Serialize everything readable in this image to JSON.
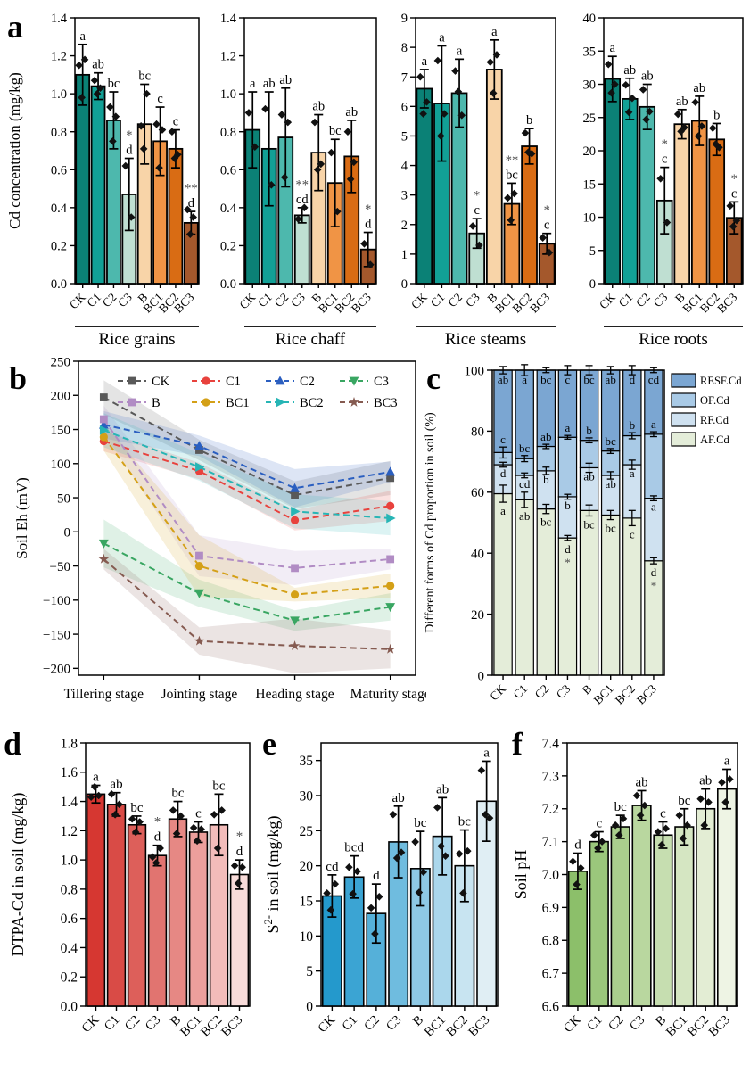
{
  "figure": {
    "background": "#ffffff",
    "panel_letters": {
      "a": "a",
      "b": "b",
      "c": "c",
      "d": "d",
      "e": "e",
      "f": "f"
    }
  },
  "chart_data": [
    {
      "id": "panel-a",
      "panel_letter": "a",
      "type": "bar",
      "ylabel": "Cd concentration (mg/kg)",
      "categories": [
        "CK",
        "C1",
        "C2",
        "C3",
        "B",
        "BC1",
        "BC2",
        "BC3"
      ],
      "bar_colors": [
        "#0b8176",
        "#12a096",
        "#4db8ad",
        "#bfdfd2",
        "#f8d4a8",
        "#f09445",
        "#d96c14",
        "#a4582c"
      ],
      "subplots": [
        {
          "group_label": "Rice grains",
          "ylim": [
            0,
            1.4
          ],
          "yticks": [
            0,
            0.2,
            0.4,
            0.6,
            0.8,
            1.0,
            1.2,
            1.4
          ],
          "decimals": 1,
          "values": [
            1.1,
            1.04,
            0.86,
            0.47,
            0.84,
            0.75,
            0.71,
            0.32
          ],
          "errors": [
            0.16,
            0.07,
            0.15,
            0.19,
            0.21,
            0.18,
            0.1,
            0.06
          ],
          "sig_labels": [
            "a",
            "ab",
            "bc",
            "d",
            "bc",
            "c",
            "c",
            "d"
          ],
          "stars": [
            "",
            "",
            "",
            "*",
            "",
            "",
            "",
            "**"
          ],
          "points": [
            [
              1.15,
              1.18,
              0.98
            ],
            [
              1.07,
              1.03,
              1.0
            ],
            [
              0.93,
              0.88,
              0.75
            ],
            [
              0.62,
              0.35
            ],
            [
              0.83,
              1.0,
              0.71
            ],
            [
              0.84,
              0.81,
              0.61
            ],
            [
              0.8,
              0.68,
              0.66
            ],
            [
              0.39,
              0.35,
              0.26
            ]
          ]
        },
        {
          "group_label": "Rice chaff",
          "ylim": [
            0,
            1.4
          ],
          "yticks": [
            0,
            0.2,
            0.4,
            0.6,
            0.8,
            1.0,
            1.2,
            1.4
          ],
          "decimals": 1,
          "values": [
            0.81,
            0.71,
            0.77,
            0.36,
            0.69,
            0.53,
            0.67,
            0.18
          ],
          "errors": [
            0.2,
            0.3,
            0.26,
            0.04,
            0.2,
            0.23,
            0.19,
            0.09
          ],
          "sig_labels": [
            "a",
            "ab",
            "ab",
            "cd",
            "ab",
            "bc",
            "ab",
            "d"
          ],
          "stars": [
            "",
            "",
            "",
            "**",
            "",
            "",
            "",
            "*"
          ],
          "points": [
            [
              0.9,
              0.72
            ],
            [
              0.92,
              0.52
            ],
            [
              0.89,
              0.85,
              0.56
            ],
            [
              0.34,
              0.4
            ],
            [
              0.85,
              0.63,
              0.6
            ],
            [
              0.69,
              0.38
            ],
            [
              0.8,
              0.64,
              0.55
            ],
            [
              0.21,
              0.1
            ]
          ]
        },
        {
          "group_label": "Rice steams",
          "ylim": [
            0,
            9
          ],
          "yticks": [
            0,
            1,
            2,
            3,
            4,
            5,
            6,
            7,
            8,
            9
          ],
          "decimals": 0,
          "values": [
            6.6,
            6.1,
            6.45,
            1.7,
            7.25,
            2.7,
            4.65,
            1.35
          ],
          "errors": [
            0.65,
            1.95,
            1.15,
            0.5,
            1.0,
            0.7,
            0.6,
            0.35
          ],
          "sig_labels": [
            "a",
            "a",
            "a",
            "c",
            "a",
            "bc",
            "b",
            "c"
          ],
          "stars": [
            "",
            "",
            "",
            "*",
            "",
            "**",
            "",
            "*"
          ],
          "points": [
            [
              7.0,
              6.15,
              5.75
            ],
            [
              7.55,
              5.75,
              5.0
            ],
            [
              7.2,
              5.7,
              6.5
            ],
            [
              1.95,
              1.3
            ],
            [
              7.5,
              7.75,
              6.45
            ],
            [
              2.9,
              3.05,
              2.15
            ],
            [
              5.1,
              4.4,
              4.45
            ],
            [
              1.55,
              1.05
            ]
          ]
        },
        {
          "group_label": "Rice roots",
          "ylim": [
            0,
            40
          ],
          "yticks": [
            0,
            5,
            10,
            15,
            20,
            25,
            30,
            35,
            40
          ],
          "decimals": 0,
          "values": [
            30.8,
            27.8,
            26.6,
            12.5,
            24.0,
            24.5,
            21.7,
            9.9
          ],
          "errors": [
            3.4,
            3.1,
            3.4,
            5.0,
            2.2,
            3.7,
            2.4,
            2.4
          ],
          "sig_labels": [
            "a",
            "ab",
            "ab",
            "c",
            "ab",
            "ab",
            "b",
            "c"
          ],
          "stars": [
            "",
            "",
            "",
            "*",
            "",
            "",
            "",
            "*"
          ],
          "points": [
            [
              33.0,
              30.0,
              28.7
            ],
            [
              29.9,
              27.9,
              25.8
            ],
            [
              29.2,
              25.9,
              24.7
            ],
            [
              15.8,
              9.2
            ],
            [
              25.5,
              23.5,
              22.9
            ],
            [
              27.3,
              23.7,
              22.2
            ],
            [
              23.4,
              20.5,
              21.0
            ],
            [
              11.7,
              9.5,
              8.6
            ]
          ]
        }
      ]
    },
    {
      "id": "panel-b",
      "panel_letter": "b",
      "type": "line",
      "ylabel": "Soil Eh (mV)",
      "ylim": [
        -210,
        250
      ],
      "yticks": [
        -200,
        -150,
        -100,
        -50,
        0,
        50,
        100,
        150,
        200,
        250
      ],
      "x_categories": [
        "Tillering stage",
        "Jointing stage",
        "Heading stage",
        "Maturity stage"
      ],
      "series": [
        {
          "name": "CK",
          "color": "#595959",
          "marker": "square",
          "values": [
            197,
            120,
            54,
            79
          ],
          "band": [
            25,
            15,
            20,
            25
          ]
        },
        {
          "name": "C1",
          "color": "#e8423d",
          "marker": "circle",
          "values": [
            133,
            89,
            17,
            38
          ],
          "band": [
            15,
            12,
            15,
            22
          ]
        },
        {
          "name": "C2",
          "color": "#2b5fc0",
          "marker": "triangle-up",
          "values": [
            157,
            126,
            64,
            88
          ],
          "band": [
            20,
            15,
            28,
            15
          ]
        },
        {
          "name": "C3",
          "color": "#39a662",
          "marker": "triangle-down",
          "values": [
            -17,
            -90,
            -130,
            -110
          ],
          "band": [
            35,
            20,
            15,
            20
          ]
        },
        {
          "name": "B",
          "color": "#b18cc4",
          "marker": "square",
          "values": [
            165,
            -35,
            -53,
            -40
          ],
          "band": [
            20,
            30,
            25,
            15
          ]
        },
        {
          "name": "BC1",
          "color": "#d4a017",
          "marker": "circle",
          "values": [
            139,
            -50,
            -92,
            -79
          ],
          "band": [
            20,
            45,
            10,
            18
          ]
        },
        {
          "name": "BC2",
          "color": "#27b5b5",
          "marker": "triangle-right",
          "values": [
            149,
            95,
            30,
            20
          ],
          "band": [
            25,
            20,
            25,
            25
          ]
        },
        {
          "name": "BC3",
          "color": "#855a50",
          "marker": "star",
          "values": [
            -40,
            -160,
            -167,
            -172
          ],
          "band": [
            15,
            20,
            40,
            28
          ]
        }
      ]
    },
    {
      "id": "panel-c",
      "panel_letter": "c",
      "type": "stacked-bar",
      "ylabel": "Different forms of Cd proportion in soil (%)",
      "ylim": [
        0,
        100
      ],
      "yticks": [
        0,
        20,
        40,
        60,
        80,
        100
      ],
      "categories": [
        "CK",
        "C1",
        "C2",
        "C3",
        "B",
        "BC1",
        "BC2",
        "BC3"
      ],
      "segments_bottom_to_top": [
        "AF.Cd",
        "RF.Cd",
        "OF.Cd",
        "RESF.Cd"
      ],
      "segment_colors": {
        "AF.Cd": "#e4edd9",
        "RF.Cd": "#cfe1f0",
        "OF.Cd": "#a9cae6",
        "RESF.Cd": "#7ba6d2"
      },
      "legend": [
        "RESF.Cd",
        "OF.Cd",
        "RF.Cd",
        "AF.Cd"
      ],
      "bars": [
        {
          "category": "CK",
          "values": [
            59.5,
            9.5,
            4.0,
            27.0
          ],
          "labels": [
            "a",
            "d",
            "c",
            "ab"
          ],
          "errs": [
            2.8,
            0.8,
            1.8,
            1.2
          ],
          "star": ""
        },
        {
          "category": "C1",
          "values": [
            57.5,
            8.0,
            5.5,
            29.0
          ],
          "labels": [
            "ab",
            "cd",
            "bc",
            "a"
          ],
          "errs": [
            2.5,
            0.8,
            1.0,
            1.8
          ],
          "star": ""
        },
        {
          "category": "C2",
          "values": [
            54.5,
            12.5,
            8.0,
            25.0
          ],
          "labels": [
            "bc",
            "b",
            "ab",
            "bc"
          ],
          "errs": [
            1.5,
            1.2,
            0.7,
            0.8
          ],
          "star": ""
        },
        {
          "category": "C3",
          "values": [
            45.0,
            13.5,
            19.5,
            22.0
          ],
          "labels": [
            "d",
            "b",
            "a",
            "c"
          ],
          "errs": [
            0.8,
            0.8,
            0.6,
            1.5
          ],
          "star": "*"
        },
        {
          "category": "B",
          "values": [
            54.0,
            14.0,
            9.0,
            23.0
          ],
          "labels": [
            "bc",
            "ab",
            "b",
            "bc"
          ],
          "errs": [
            1.8,
            1.5,
            0.8,
            1.5
          ],
          "star": ""
        },
        {
          "category": "BC1",
          "values": [
            52.5,
            13.0,
            8.0,
            26.5
          ],
          "labels": [
            "bc",
            "ab",
            "bc",
            "ab"
          ],
          "errs": [
            1.5,
            1.2,
            0.8,
            1.2
          ],
          "star": ""
        },
        {
          "category": "BC2",
          "values": [
            51.5,
            17.5,
            9.5,
            21.5
          ],
          "labels": [
            "c",
            "a",
            "b",
            "d"
          ],
          "errs": [
            2.5,
            1.5,
            1.0,
            1.5
          ],
          "star": ""
        },
        {
          "category": "BC3",
          "values": [
            37.5,
            20.5,
            21.0,
            21.0
          ],
          "labels": [
            "d",
            "a",
            "a",
            "cd"
          ],
          "errs": [
            1.0,
            0.8,
            0.8,
            0.8
          ],
          "star": "*"
        }
      ]
    },
    {
      "id": "panel-d",
      "panel_letter": "d",
      "type": "bar",
      "ylabel": "DTPA-Cd in soil (mg/kg)",
      "ylim": [
        0,
        1.8
      ],
      "yticks": [
        0,
        0.2,
        0.4,
        0.6,
        0.8,
        1.0,
        1.2,
        1.4,
        1.6,
        1.8
      ],
      "decimals": 1,
      "categories": [
        "CK",
        "C1",
        "C2",
        "C3",
        "B",
        "BC1",
        "BC2",
        "BC3"
      ],
      "bar_colors": [
        "#d63731",
        "#d94b46",
        "#dd5f5a",
        "#e17470",
        "#e68884",
        "#ec9f9c",
        "#f2bcba",
        "#f8dcda"
      ],
      "values": [
        1.45,
        1.38,
        1.24,
        1.03,
        1.28,
        1.19,
        1.24,
        0.9
      ],
      "errors": [
        0.06,
        0.08,
        0.06,
        0.07,
        0.12,
        0.07,
        0.21,
        0.1
      ],
      "sig_labels": [
        "a",
        "ab",
        "bc",
        "d",
        "bc",
        "c",
        "bc",
        "d"
      ],
      "stars": [
        "",
        "",
        "",
        "*",
        "",
        "",
        "",
        "*"
      ],
      "points": [
        [
          1.43,
          1.44,
          1.5
        ],
        [
          1.45,
          1.38,
          1.31
        ],
        [
          1.28,
          1.26,
          1.19
        ],
        [
          1.02,
          1.08,
          0.98
        ],
        [
          1.34,
          1.3,
          1.18
        ],
        [
          1.22,
          1.21,
          1.13
        ],
        [
          1.31,
          1.34,
          1.08
        ],
        [
          0.96,
          0.95,
          0.84
        ]
      ]
    },
    {
      "id": "panel-e",
      "panel_letter": "e",
      "type": "bar",
      "ylabel_rich": [
        [
          "S",
          ""
        ],
        [
          "2-",
          "sup"
        ],
        [
          " in soil (mg/kg)",
          ""
        ]
      ],
      "ylim": [
        0,
        37.5
      ],
      "yticks": [
        0,
        5,
        10,
        15,
        20,
        25,
        30,
        35
      ],
      "decimals": 0,
      "categories": [
        "CK",
        "C1",
        "C2",
        "C3",
        "B",
        "BC1",
        "BC2",
        "BC3"
      ],
      "bar_colors": [
        "#2499cc",
        "#3ba4d3",
        "#55b0d9",
        "#6fbcdf",
        "#8ec9e5",
        "#abd7ec",
        "#c8e4f1",
        "#e0eef4"
      ],
      "values": [
        15.7,
        18.4,
        13.2,
        23.4,
        19.6,
        24.2,
        20.0,
        29.2
      ],
      "errors": [
        3.0,
        3.0,
        4.2,
        5.1,
        5.3,
        5.5,
        5.1,
        5.7
      ],
      "sig_labels": [
        "cd",
        "bcd",
        "d",
        "ab",
        "bc",
        "ab",
        "bc",
        "a"
      ],
      "stars": [
        "",
        "",
        "",
        "",
        "",
        "",
        "",
        ""
      ],
      "points": [
        [
          16.1,
          17.4,
          13.7
        ],
        [
          19.8,
          19.2,
          16.0
        ],
        [
          14.0,
          15.6,
          10.3
        ],
        [
          27.3,
          21.9,
          21.1
        ],
        [
          23.4,
          19.1,
          16.2
        ],
        [
          28.3,
          21.4,
          22.8
        ],
        [
          21.7,
          22.1,
          16.1
        ],
        [
          33.6,
          26.8,
          27.3
        ]
      ]
    },
    {
      "id": "panel-f",
      "panel_letter": "f",
      "type": "bar",
      "ylabel": "Soil pH",
      "ylim": [
        6.6,
        7.4
      ],
      "yticks": [
        6.6,
        6.7,
        6.8,
        6.9,
        7.0,
        7.1,
        7.2,
        7.3,
        7.4
      ],
      "decimals": 1,
      "categories": [
        "CK",
        "C1",
        "C2",
        "C3",
        "B",
        "BC1",
        "BC2",
        "BC3"
      ],
      "bar_colors": [
        "#8cbf6a",
        "#9bc77c",
        "#aacf8d",
        "#b9d79f",
        "#c6deb0",
        "#d5e6c2",
        "#e3edd4",
        "#eef4e4"
      ],
      "values": [
        7.01,
        7.1,
        7.145,
        7.21,
        7.12,
        7.145,
        7.2,
        7.26
      ],
      "errors": [
        0.055,
        0.03,
        0.035,
        0.045,
        0.04,
        0.055,
        0.06,
        0.06
      ],
      "sig_labels": [
        "d",
        "c",
        "bc",
        "ab",
        "c",
        "bc",
        "ab",
        "a"
      ],
      "stars": [
        "",
        "",
        "",
        "",
        "",
        "",
        "",
        ""
      ],
      "points": [
        [
          7.04,
          7.02,
          6.97
        ],
        [
          7.12,
          7.1,
          7.08
        ],
        [
          7.15,
          7.17,
          7.12
        ],
        [
          7.24,
          7.21,
          7.18
        ],
        [
          7.13,
          7.14,
          7.09
        ],
        [
          7.18,
          7.15,
          7.11
        ],
        [
          7.23,
          7.22,
          7.15
        ],
        [
          7.28,
          7.29,
          7.22
        ]
      ]
    }
  ]
}
